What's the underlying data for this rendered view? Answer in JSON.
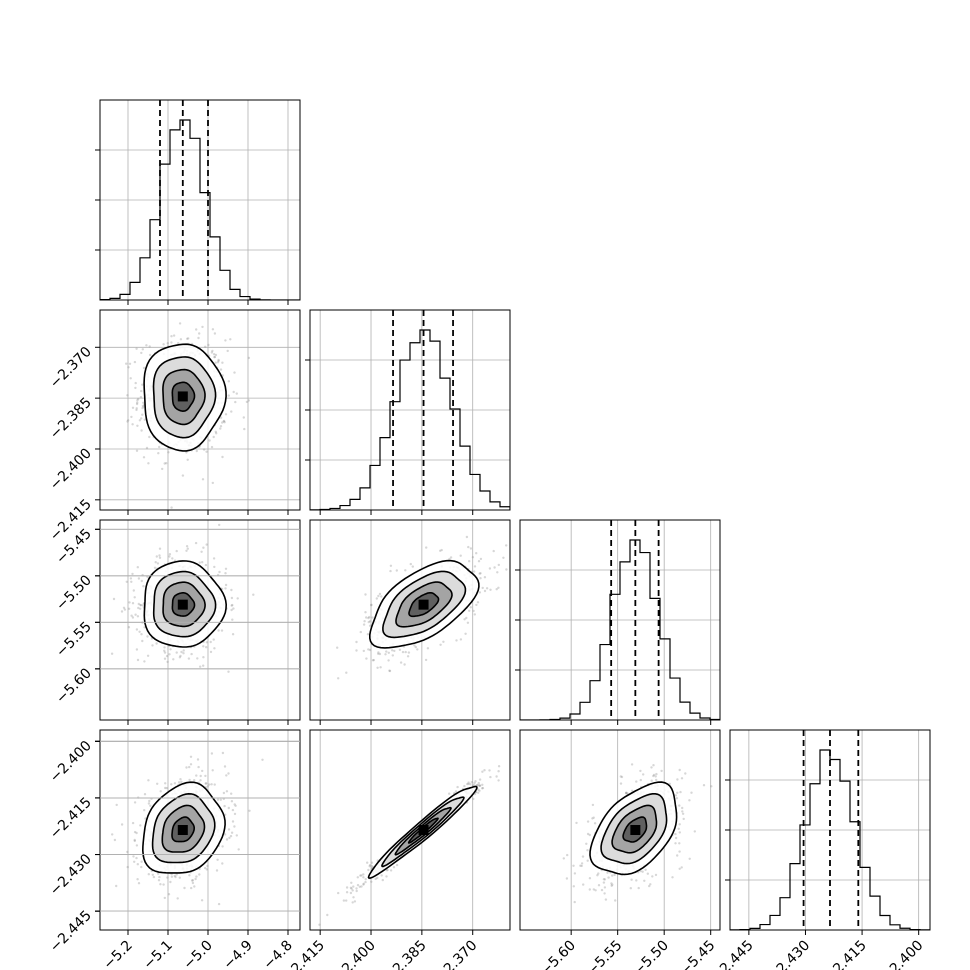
{
  "chart_data": {
    "type": "corner",
    "grid": true,
    "parameters": [
      {
        "ticks": [
          -5.2,
          -5.1,
          -5.0,
          -4.9,
          -4.8
        ],
        "tick_labels": [
          "−5.2",
          "−5.1",
          "−5.0",
          "−4.9",
          "−4.8"
        ],
        "range": [
          -5.27,
          -4.77
        ],
        "mean": -5.063,
        "std": 0.055,
        "quantiles": [
          -5.12,
          -5.063,
          -5.0
        ]
      },
      {
        "ticks": [
          -2.415,
          -2.4,
          -2.385,
          -2.37
        ],
        "tick_labels": [
          "−2.415",
          "−2.400",
          "−2.385",
          "−2.370"
        ],
        "range": [
          -2.418,
          -2.359
        ],
        "mean": -2.3845,
        "std": 0.0085,
        "quantiles": [
          -2.3935,
          -2.3845,
          -2.3758
        ]
      },
      {
        "ticks": [
          -5.6,
          -5.55,
          -5.5,
          -5.45
        ],
        "tick_labels": [
          "−5.60",
          "−5.55",
          "−5.50",
          "−5.45"
        ],
        "range": [
          -5.655,
          -5.44
        ],
        "mean": -5.531,
        "std": 0.025,
        "quantiles": [
          -5.557,
          -5.531,
          -5.506
        ]
      },
      {
        "ticks": [
          -2.445,
          -2.43,
          -2.415,
          -2.4
        ],
        "tick_labels": [
          "−2.445",
          "−2.430",
          "−2.415",
          "−2.400"
        ],
        "range": [
          -2.45,
          -2.397
        ],
        "mean": -2.4235,
        "std": 0.0065,
        "quantiles": [
          -2.4305,
          -2.4235,
          -2.416
        ]
      }
    ],
    "correlations": {
      "1-0": 0.0,
      "2-0": 0.0,
      "2-1": 0.55,
      "3-0": 0.2,
      "3-1": 0.97,
      "3-2": 0.45
    },
    "histogram_yticks": [
      0.25,
      0.5,
      0.75
    ],
    "quantile_style": "dashed"
  }
}
